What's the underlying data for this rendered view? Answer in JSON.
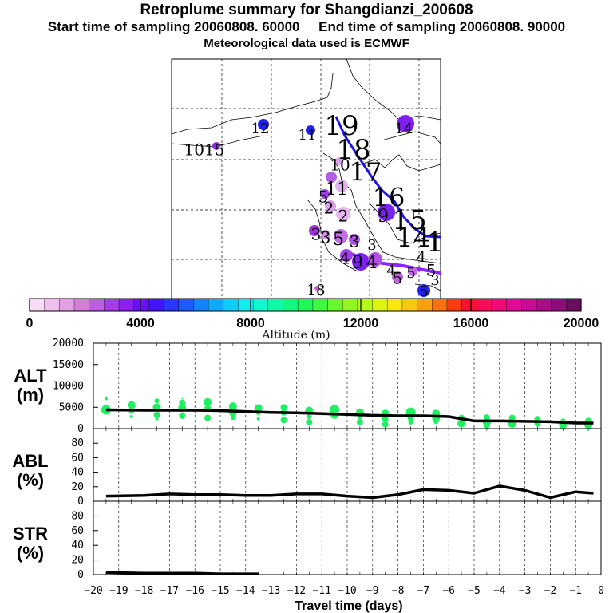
{
  "header": {
    "title": "Retroplume summary for Shangdianzi_200608",
    "start": "Start time of sampling 20060808. 60000",
    "end": "End time of sampling 20060808. 90000",
    "met": "Meteorological data used is ECMWF"
  },
  "colors": {
    "scale": [
      "#f6dcf6",
      "#eebfee",
      "#e4a0e4",
      "#d47ed8",
      "#c05ce0",
      "#a63ce8",
      "#8c1ff0",
      "#6a10f4",
      "#4414f8",
      "#2a36fc",
      "#1a5cfc",
      "#1484fc",
      "#10a8fc",
      "#10ccfc",
      "#10ecf0",
      "#10f8d0",
      "#10f8a8",
      "#14f880",
      "#20f858",
      "#40f840",
      "#68f830",
      "#90f820",
      "#b8f818",
      "#dcf410",
      "#f8e810",
      "#f8c810",
      "#f8a010",
      "#f87010",
      "#f83c10",
      "#f81030",
      "#f80c58",
      "#f00a78",
      "#e00a94",
      "#c80c98",
      "#a80c88",
      "#8c0c78",
      "#6c0c60"
    ],
    "line_purple": "#8e24ff",
    "line_blue": "#1e14e6",
    "green": "#1ef060"
  },
  "map": {
    "labels": [
      {
        "t": "19",
        "x": 428,
        "y": 160,
        "s": 34
      },
      {
        "t": "18",
        "x": 443,
        "y": 190,
        "s": 34
      },
      {
        "t": "17",
        "x": 458,
        "y": 218,
        "s": 32
      },
      {
        "t": "16",
        "x": 487,
        "y": 250,
        "s": 32
      },
      {
        "t": "15",
        "x": 513,
        "y": 278,
        "s": 34
      },
      {
        "t": "14",
        "x": 518,
        "y": 300,
        "s": 34
      },
      {
        "t": "1",
        "x": 545,
        "y": 306,
        "s": 34
      },
      {
        "t": "14",
        "x": 506,
        "y": 162,
        "s": 18
      },
      {
        "t": "12",
        "x": 326,
        "y": 162,
        "s": 18
      },
      {
        "t": "11",
        "x": 385,
        "y": 170,
        "s": 18
      },
      {
        "t": "1015",
        "x": 256,
        "y": 189,
        "s": 20
      },
      {
        "t": "10",
        "x": 426,
        "y": 208,
        "s": 20
      },
      {
        "t": "11",
        "x": 422,
        "y": 238,
        "s": 22
      },
      {
        "t": "5",
        "x": 405,
        "y": 248,
        "s": 20
      },
      {
        "t": "2",
        "x": 412,
        "y": 262,
        "s": 20
      },
      {
        "t": "2",
        "x": 430,
        "y": 272,
        "s": 20
      },
      {
        "t": "9",
        "x": 480,
        "y": 272,
        "s": 22
      },
      {
        "t": "3",
        "x": 396,
        "y": 295,
        "s": 20
      },
      {
        "t": "3",
        "x": 408,
        "y": 299,
        "s": 20
      },
      {
        "t": "5",
        "x": 424,
        "y": 301,
        "s": 22
      },
      {
        "t": "3",
        "x": 444,
        "y": 304,
        "s": 20
      },
      {
        "t": "3",
        "x": 466,
        "y": 308,
        "s": 18
      },
      {
        "t": "4",
        "x": 432,
        "y": 325,
        "s": 20
      },
      {
        "t": "9",
        "x": 448,
        "y": 330,
        "s": 22
      },
      {
        "t": "4",
        "x": 466,
        "y": 330,
        "s": 22
      },
      {
        "t": "4",
        "x": 528,
        "y": 323,
        "s": 18
      },
      {
        "t": "5",
        "x": 540,
        "y": 340,
        "s": 20
      },
      {
        "t": "4",
        "x": 490,
        "y": 340,
        "s": 18
      },
      {
        "t": "5",
        "x": 498,
        "y": 350,
        "s": 20
      },
      {
        "t": "5",
        "x": 515,
        "y": 343,
        "s": 18
      },
      {
        "t": "3",
        "x": 545,
        "y": 352,
        "s": 18
      },
      {
        "t": "5",
        "x": 531,
        "y": 366,
        "s": 18
      },
      {
        "t": "18",
        "x": 396,
        "y": 364,
        "s": 18
      }
    ]
  },
  "colorbar": {
    "ticks": [
      "0",
      "4000",
      "8000",
      "12000",
      "16000",
      "20000"
    ],
    "label": "Altitude (m)"
  },
  "chart_data": [
    {
      "type": "scatter",
      "title": "ALT (m)",
      "panel_label_top": "ALT",
      "panel_label_bottom": "(m)",
      "ylim": [
        0,
        20000
      ],
      "yticks": [
        "0",
        "5000",
        "10000",
        "15000",
        "20000"
      ],
      "xlim": [
        -20,
        0
      ],
      "line": [
        [
          -19.5,
          4400
        ],
        [
          -18,
          4300
        ],
        [
          -17,
          4300
        ],
        [
          -16,
          4300
        ],
        [
          -15,
          4200
        ],
        [
          -14,
          4000
        ],
        [
          -13,
          3800
        ],
        [
          -12,
          3700
        ],
        [
          -11,
          3500
        ],
        [
          -10,
          3300
        ],
        [
          -9,
          3100
        ],
        [
          -8,
          3000
        ],
        [
          -7,
          3000
        ],
        [
          -6,
          2800
        ],
        [
          -5,
          1800
        ],
        [
          -4,
          1800
        ],
        [
          -3,
          1700
        ],
        [
          -2,
          1600
        ],
        [
          -1,
          1300
        ],
        [
          -0.3,
          1300
        ]
      ],
      "points": [
        [
          -19.5,
          4400,
          6
        ],
        [
          -19.5,
          7000,
          2
        ],
        [
          -18.5,
          5500,
          5
        ],
        [
          -18.5,
          4000,
          3
        ],
        [
          -18.5,
          2800,
          2
        ],
        [
          -17.5,
          6500,
          3
        ],
        [
          -17.5,
          5000,
          5
        ],
        [
          -17.5,
          3200,
          4
        ],
        [
          -17.5,
          2300,
          2
        ],
        [
          -16.5,
          6000,
          4
        ],
        [
          -16.5,
          4800,
          5
        ],
        [
          -16.5,
          3000,
          4
        ],
        [
          -16.5,
          7000,
          1
        ],
        [
          -15.5,
          6200,
          5
        ],
        [
          -15.5,
          4800,
          4
        ],
        [
          -15.5,
          2500,
          4
        ],
        [
          -15.5,
          6800,
          2
        ],
        [
          -14.5,
          5200,
          5
        ],
        [
          -14.5,
          3800,
          5
        ],
        [
          -14.5,
          2600,
          3
        ],
        [
          -13.5,
          4800,
          5
        ],
        [
          -13.5,
          3700,
          3
        ],
        [
          -13.5,
          2300,
          2
        ],
        [
          -12.5,
          5000,
          4
        ],
        [
          -12.5,
          3800,
          4
        ],
        [
          -12.5,
          2000,
          4
        ],
        [
          -11.5,
          4200,
          5
        ],
        [
          -11.5,
          2800,
          3
        ],
        [
          -11.5,
          1500,
          4
        ],
        [
          -10.5,
          4400,
          6
        ],
        [
          -10.5,
          3200,
          5
        ],
        [
          -9.5,
          3800,
          5
        ],
        [
          -9.5,
          2800,
          3
        ],
        [
          -9.5,
          1500,
          4
        ],
        [
          -8.5,
          3500,
          5
        ],
        [
          -8.5,
          2200,
          4
        ],
        [
          -8.5,
          1000,
          4
        ],
        [
          -7.5,
          3800,
          6
        ],
        [
          -7.5,
          2500,
          4
        ],
        [
          -7.5,
          1500,
          3
        ],
        [
          -6.5,
          3500,
          5
        ],
        [
          -6.5,
          2500,
          5
        ],
        [
          -6.5,
          1600,
          3
        ],
        [
          -5.5,
          2500,
          4
        ],
        [
          -5.5,
          1200,
          5
        ],
        [
          -4.5,
          2600,
          4
        ],
        [
          -4.5,
          1500,
          5
        ],
        [
          -4.5,
          800,
          4
        ],
        [
          -3.5,
          2500,
          4
        ],
        [
          -3.5,
          1100,
          5
        ],
        [
          -2.5,
          2200,
          4
        ],
        [
          -2.5,
          1200,
          4
        ],
        [
          -1.5,
          1800,
          3
        ],
        [
          -1.5,
          900,
          5
        ],
        [
          -0.5,
          1800,
          4
        ],
        [
          -0.5,
          900,
          5
        ]
      ]
    },
    {
      "type": "line",
      "title": "ABL (%)",
      "panel_label_top": "ABL",
      "panel_label_bottom": "(%)",
      "ylim": [
        0,
        100
      ],
      "yticks": [
        "0",
        "20",
        "40",
        "60",
        "80"
      ],
      "xlim": [
        -20,
        0
      ],
      "line": [
        [
          -19.5,
          7
        ],
        [
          -18,
          8
        ],
        [
          -17,
          10
        ],
        [
          -16,
          9
        ],
        [
          -15,
          9
        ],
        [
          -14,
          8
        ],
        [
          -13,
          8
        ],
        [
          -12,
          10
        ],
        [
          -11,
          10
        ],
        [
          -10,
          7
        ],
        [
          -9,
          5
        ],
        [
          -8,
          9
        ],
        [
          -7,
          16
        ],
        [
          -6,
          15
        ],
        [
          -5,
          11
        ],
        [
          -4,
          21
        ],
        [
          -3,
          15
        ],
        [
          -2,
          5
        ],
        [
          -1,
          13
        ],
        [
          -0.3,
          11
        ]
      ]
    },
    {
      "type": "line",
      "title": "STR (%)",
      "panel_label_top": "STR",
      "panel_label_bottom": "(%)",
      "ylim": [
        0,
        100
      ],
      "yticks": [
        "0",
        "20",
        "40",
        "60",
        "80"
      ],
      "xlim": [
        -20,
        0
      ],
      "line": [
        [
          -19.5,
          3
        ],
        [
          -18,
          2
        ],
        [
          -17,
          2
        ],
        [
          -16,
          2
        ],
        [
          -15,
          1
        ],
        [
          -14,
          1
        ],
        [
          -13.5,
          1
        ]
      ]
    }
  ],
  "xaxis": {
    "ticks": [
      "−20",
      "−19",
      "−18",
      "−17",
      "−16",
      "−15",
      "−14",
      "−13",
      "−12",
      "−11",
      "−10",
      "−9",
      "−8",
      "−7",
      "−6",
      "−5",
      "−4",
      "−3",
      "−2",
      "−1",
      "0"
    ],
    "label": "Travel time (days)"
  }
}
